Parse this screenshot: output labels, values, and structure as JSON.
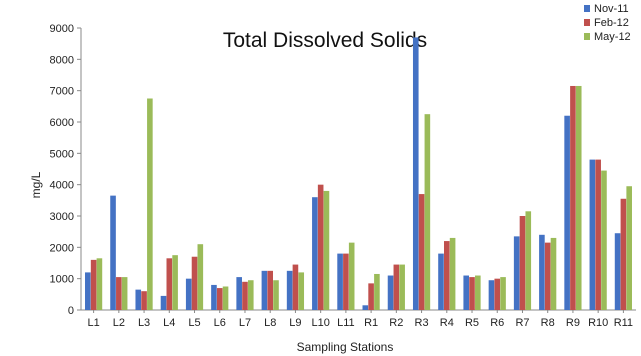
{
  "chart_data": {
    "type": "bar",
    "title": "Total Dissolved Solids",
    "xlabel": "Sampling Stations",
    "ylabel": "mg/L",
    "ylim": [
      0,
      9000
    ],
    "yticks": [
      0,
      1000,
      2000,
      3000,
      4000,
      5000,
      6000,
      7000,
      8000,
      9000
    ],
    "grid": false,
    "legend_position": "top-right",
    "categories": [
      "L1",
      "L2",
      "L3",
      "L4",
      "L5",
      "L6",
      "L7",
      "L8",
      "L9",
      "L10",
      "L11",
      "R1",
      "R2",
      "R3",
      "R4",
      "R5",
      "R6",
      "R7",
      "R8",
      "R9",
      "R10",
      "R11"
    ],
    "series": [
      {
        "name": "Nov-11",
        "color": "#4472c4",
        "values": [
          1200,
          3650,
          650,
          450,
          1000,
          800,
          1050,
          1250,
          1250,
          3600,
          1800,
          150,
          1100,
          8700,
          1800,
          1100,
          950,
          2350,
          2400,
          6200,
          4800,
          2450
        ]
      },
      {
        "name": "Feb-12",
        "color": "#c0504d",
        "values": [
          1600,
          1050,
          600,
          1650,
          1700,
          700,
          900,
          1250,
          1450,
          4000,
          1800,
          850,
          1450,
          3700,
          2200,
          1050,
          1000,
          3000,
          2150,
          7150,
          4800,
          3550
        ]
      },
      {
        "name": "May-12",
        "color": "#9bbb59",
        "values": [
          1650,
          1050,
          6750,
          1750,
          2100,
          750,
          950,
          950,
          1200,
          3800,
          2150,
          1150,
          1450,
          6250,
          2300,
          1100,
          1050,
          3150,
          2300,
          7150,
          4450,
          3950
        ]
      }
    ]
  }
}
